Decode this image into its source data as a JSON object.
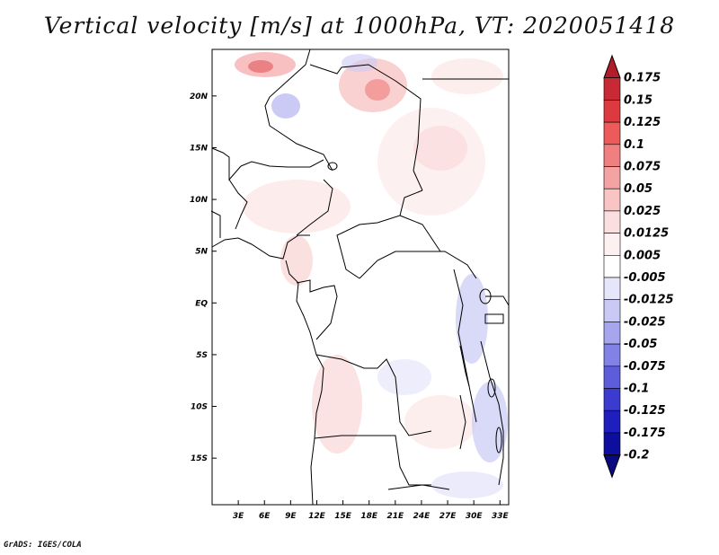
{
  "title": "Vertical velocity [m/s] at 1000hPa, VT: 2020051418",
  "footer": "GrADS: IGES/COLA",
  "map": {
    "lon_range": [
      0,
      34
    ],
    "lat_range": [
      -19.5,
      24.5
    ],
    "lon_ticks": [
      "3E",
      "6E",
      "9E",
      "12E",
      "15E",
      "18E",
      "21E",
      "24E",
      "27E",
      "30E",
      "33E"
    ],
    "lat_ticks": [
      "20N",
      "15N",
      "10N",
      "5N",
      "EQ",
      "5S",
      "10S",
      "15S"
    ]
  },
  "colorbar": {
    "labels": [
      "0.175",
      "0.15",
      "0.125",
      "0.1",
      "0.075",
      "0.05",
      "0.025",
      "0.0125",
      "0.005",
      "-0.005",
      "-0.0125",
      "-0.025",
      "-0.05",
      "-0.075",
      "-0.1",
      "-0.125",
      "-0.175",
      "-0.2"
    ],
    "colors": [
      "#b11d2b",
      "#c82a35",
      "#dd3a40",
      "#ec5a5a",
      "#f07f7f",
      "#f4a3a3",
      "#f8c4c4",
      "#fbdfdf",
      "#fdf0f0",
      "#ffffff",
      "#e6e6fb",
      "#c9c9f5",
      "#a6a6ee",
      "#8282e6",
      "#5d5ddc",
      "#3b3bd0",
      "#1f1fbd",
      "#0d0d9e",
      "#0a0a80"
    ]
  }
}
